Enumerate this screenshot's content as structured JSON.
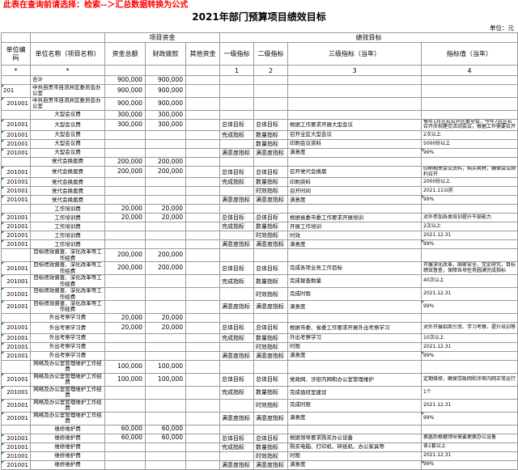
{
  "notice": "此表在查询前请选择：检索--＞汇总数据转换为公式",
  "title": "2021年部门预算项目绩效目标",
  "unit_label": "单位：元",
  "colors": {
    "notice_red": "#ff0000",
    "flag_green": "#1d8348",
    "grid_border": "#9a9a9a"
  },
  "table": {
    "group_headers": {
      "project_funds": "项目资金",
      "performance": "绩效目标"
    },
    "columns": [
      "单位编码",
      "单位名称（项目名称）",
      "资金总额",
      "财政拨款",
      "其他资金",
      "一级指标",
      "二级指标",
      "三级指标（当年）",
      "指标值（当年）"
    ],
    "index_row": [
      "*",
      "*",
      "",
      "",
      "",
      "1",
      "2",
      "3",
      "4"
    ],
    "rows": [
      {
        "code": "",
        "name": "合计",
        "total": "900,000",
        "fiscal": "900,000",
        "other": "",
        "l1": "",
        "l2": "",
        "l3": "",
        "val": "",
        "name_align": "left",
        "tall": false,
        "code_flag": false,
        "val_flag": false,
        "code_align": "right"
      },
      {
        "code": "201",
        "name": "中共自贡市自流井区委员会办公室",
        "total": "900,000",
        "fiscal": "900,000",
        "other": "",
        "l1": "",
        "l2": "",
        "l3": "",
        "val": "",
        "name_align": "left",
        "tall": true,
        "code_flag": true,
        "val_flag": false,
        "code_align": "left"
      },
      {
        "code": "201001",
        "name": "中共自贡市自流井区委员会办公室",
        "total": "900,000",
        "fiscal": "900,000",
        "other": "",
        "l1": "",
        "l2": "",
        "l3": "",
        "val": "",
        "name_align": "left",
        "tall": true,
        "code_flag": true,
        "val_flag": false,
        "code_align": "right"
      },
      {
        "code": "",
        "name": "大型会议费",
        "total": "300,000",
        "fiscal": "300,000",
        "other": "",
        "l1": "",
        "l2": "",
        "l3": "",
        "val": "",
        "name_align": "center",
        "tall": false,
        "code_flag": false,
        "val_flag": false,
        "code_align": "right"
      },
      {
        "code": "201001",
        "name": "大型会议费",
        "total": "300,000",
        "fiscal": "300,000",
        "other": "",
        "l1": "总体目标",
        "l2": "总体目标",
        "l3": "根据工作要求开展大型会议",
        "val": "每年1月左右召开区委全会，今年7月左右召开庆祝建党活动会议，根据工作需要召开",
        "name_align": "center",
        "tall": true,
        "code_flag": true,
        "val_flag": false,
        "code_align": "right"
      },
      {
        "code": "201001",
        "name": "大型会议费",
        "total": "",
        "fiscal": "",
        "other": "",
        "l1": "完成指标",
        "l2": "数量指标",
        "l3": "召开全区大型会议",
        "val": "2次以上",
        "name_align": "center",
        "tall": false,
        "code_flag": true,
        "val_flag": false,
        "code_align": "right"
      },
      {
        "code": "201001",
        "name": "大型会议费",
        "total": "",
        "fiscal": "",
        "other": "",
        "l1": "",
        "l2": "数量指标",
        "l3": "印刷会议资料",
        "val": "5000份以上",
        "name_align": "center",
        "tall": false,
        "code_flag": true,
        "val_flag": false,
        "code_align": "right"
      },
      {
        "code": "201001",
        "name": "大型会议费",
        "total": "",
        "fiscal": "",
        "other": "",
        "l1": "满意度指标",
        "l2": "满意度指标",
        "l3": "满意度",
        "val": "99%",
        "name_align": "center",
        "tall": false,
        "code_flag": true,
        "val_flag": true,
        "code_align": "right"
      },
      {
        "code": "",
        "name": "党代会换届费",
        "total": "200,000",
        "fiscal": "200,000",
        "other": "",
        "l1": "",
        "l2": "",
        "l3": "",
        "val": "",
        "name_align": "center",
        "tall": false,
        "code_flag": false,
        "val_flag": false,
        "code_align": "right"
      },
      {
        "code": "201001",
        "name": "党代会换届费",
        "total": "200,000",
        "fiscal": "200,000",
        "other": "",
        "l1": "总体目标",
        "l2": "总体目标",
        "l3": "召开党代会换届",
        "val": "印刷相关会议资料，购买耗材，确保会议顺利召开",
        "name_align": "center",
        "tall": true,
        "code_flag": true,
        "val_flag": false,
        "code_align": "right"
      },
      {
        "code": "201001",
        "name": "党代会换届费",
        "total": "",
        "fiscal": "",
        "other": "",
        "l1": "完成指标",
        "l2": "数量指标",
        "l3": "印刷资料",
        "val": "2000份以上",
        "name_align": "center",
        "tall": false,
        "code_flag": true,
        "val_flag": false,
        "code_align": "right"
      },
      {
        "code": "201001",
        "name": "党代会换届费",
        "total": "",
        "fiscal": "",
        "other": "",
        "l1": "",
        "l2": "时效指标",
        "l3": "召开时间",
        "val": "2021.11以前",
        "name_align": "center",
        "tall": false,
        "code_flag": true,
        "val_flag": false,
        "code_align": "right"
      },
      {
        "code": "201001",
        "name": "党代会换届费",
        "total": "",
        "fiscal": "",
        "other": "",
        "l1": "满意度指标",
        "l2": "满意度指标",
        "l3": "满意度",
        "val": "99%",
        "name_align": "center",
        "tall": false,
        "code_flag": true,
        "val_flag": true,
        "code_align": "right"
      },
      {
        "code": "",
        "name": "工作培训费",
        "total": "20,000",
        "fiscal": "20,000",
        "other": "",
        "l1": "",
        "l2": "",
        "l3": "",
        "val": "",
        "name_align": "center",
        "tall": false,
        "code_flag": false,
        "val_flag": false,
        "code_align": "right"
      },
      {
        "code": "201001",
        "name": "工作培训费",
        "total": "20,000",
        "fiscal": "20,000",
        "other": "",
        "l1": "总体目标",
        "l2": "总体目标",
        "l3": "根据省委市委工作要求开展培训",
        "val": "对外参加各类培训提升干部能力",
        "name_align": "center",
        "tall": false,
        "code_flag": true,
        "val_flag": false,
        "code_align": "right"
      },
      {
        "code": "201001",
        "name": "工作培训费",
        "total": "",
        "fiscal": "",
        "other": "",
        "l1": "完成指标",
        "l2": "数量指标",
        "l3": "开展工作培训",
        "val": "2次以上",
        "name_align": "center",
        "tall": false,
        "code_flag": true,
        "val_flag": false,
        "code_align": "right"
      },
      {
        "code": "201001",
        "name": "工作培训费",
        "total": "",
        "fiscal": "",
        "other": "",
        "l1": "",
        "l2": "时效指标",
        "l3": "时效",
        "val": "2021.12.31",
        "name_align": "center",
        "tall": false,
        "code_flag": true,
        "val_flag": false,
        "code_align": "right"
      },
      {
        "code": "201001",
        "name": "工作培训费",
        "total": "",
        "fiscal": "",
        "other": "",
        "l1": "满意度指标",
        "l2": "满意度指标",
        "l3": "满意度",
        "val": "99%",
        "name_align": "center",
        "tall": false,
        "code_flag": true,
        "val_flag": true,
        "code_align": "right"
      },
      {
        "code": "",
        "name": "目标绩效督查、深化改革等工作经费",
        "total": "200,000",
        "fiscal": "200,000",
        "other": "",
        "l1": "",
        "l2": "",
        "l3": "",
        "val": "",
        "name_align": "center",
        "tall": true,
        "code_flag": false,
        "val_flag": false,
        "code_align": "right"
      },
      {
        "code": "201001",
        "name": "目标绩效督查、深化改革等工作经费",
        "total": "200,000",
        "fiscal": "200,000",
        "other": "",
        "l1": "总体目标",
        "l2": "总体目标",
        "l3": "完成各项业务工作目标",
        "val": "开展深化改革、国家安全、党史研究、目标绩效督查，保障各项任务圆满完成指标",
        "name_align": "center",
        "tall": true,
        "code_flag": true,
        "val_flag": false,
        "code_align": "right"
      },
      {
        "code": "201001",
        "name": "目标绩效督查、深化改革等工作经费",
        "total": "",
        "fiscal": "",
        "other": "",
        "l1": "完成指标",
        "l2": "数量指标",
        "l3": "完成督查数量",
        "val": "40次以上",
        "name_align": "center",
        "tall": true,
        "code_flag": true,
        "val_flag": false,
        "code_align": "right"
      },
      {
        "code": "201001",
        "name": "目标绩效督查、深化改革等工作经费",
        "total": "",
        "fiscal": "",
        "other": "",
        "l1": "",
        "l2": "时效指标",
        "l3": "完成时限",
        "val": "2021.12.31",
        "name_align": "center",
        "tall": true,
        "code_flag": true,
        "val_flag": false,
        "code_align": "right"
      },
      {
        "code": "201001",
        "name": "目标绩效督查、深化改革等工作经费",
        "total": "",
        "fiscal": "",
        "other": "",
        "l1": "满意度指标",
        "l2": "满意度指标",
        "l3": "满意度",
        "val": "99%",
        "name_align": "center",
        "tall": true,
        "code_flag": true,
        "val_flag": true,
        "code_align": "right"
      },
      {
        "code": "",
        "name": "外出考察学习费",
        "total": "20,000",
        "fiscal": "20,000",
        "other": "",
        "l1": "",
        "l2": "",
        "l3": "",
        "val": "",
        "name_align": "center",
        "tall": false,
        "code_flag": false,
        "val_flag": false,
        "code_align": "right"
      },
      {
        "code": "201001",
        "name": "外出考察学习费",
        "total": "20,000",
        "fiscal": "20,000",
        "other": "",
        "l1": "总体目标",
        "l2": "总体目标",
        "l3": "根据市委、省委工作要求开展外出考察学习",
        "val": "对外开展招商引资、学习考察、提升培训等",
        "name_align": "center",
        "tall": true,
        "code_flag": true,
        "val_flag": false,
        "code_align": "right"
      },
      {
        "code": "201001",
        "name": "外出考察学习费",
        "total": "",
        "fiscal": "",
        "other": "",
        "l1": "完成指标",
        "l2": "数量指标",
        "l3": "外出考察学习",
        "val": "10次以上",
        "name_align": "center",
        "tall": false,
        "code_flag": true,
        "val_flag": false,
        "code_align": "right"
      },
      {
        "code": "201001",
        "name": "外出考察学习费",
        "total": "",
        "fiscal": "",
        "other": "",
        "l1": "",
        "l2": "时效指标",
        "l3": "时限",
        "val": "2021.12.31",
        "name_align": "center",
        "tall": false,
        "code_flag": true,
        "val_flag": false,
        "code_align": "right"
      },
      {
        "code": "201001",
        "name": "外出考察学习费",
        "total": "",
        "fiscal": "",
        "other": "",
        "l1": "满意度指标",
        "l2": "满意度指标",
        "l3": "满意度",
        "val": "99%",
        "name_align": "center",
        "tall": false,
        "code_flag": true,
        "val_flag": true,
        "code_align": "right"
      },
      {
        "code": "",
        "name": "网络及办公室管理维护工作经费",
        "total": "100,000",
        "fiscal": "100,000",
        "other": "",
        "l1": "",
        "l2": "",
        "l3": "",
        "val": "",
        "name_align": "center",
        "tall": true,
        "code_flag": false,
        "val_flag": false,
        "code_align": "right"
      },
      {
        "code": "201001",
        "name": "网络及办公室管理维护工作经费",
        "total": "100,000",
        "fiscal": "100,000",
        "other": "",
        "l1": "总体目标",
        "l2": "总体目标",
        "l3": "党政网、涉密内网和办公室管理维护",
        "val": "定期维修，确保党政网和涉密内网正常运行",
        "name_align": "center",
        "tall": true,
        "code_flag": true,
        "val_flag": false,
        "code_align": "right"
      },
      {
        "code": "201001",
        "name": "网络及办公室管理维护工作经费",
        "total": "",
        "fiscal": "",
        "other": "",
        "l1": "完成指标",
        "l2": "数量指标",
        "l3": "完成值班室建设",
        "val": "1个",
        "name_align": "center",
        "tall": true,
        "code_flag": true,
        "val_flag": false,
        "code_align": "right"
      },
      {
        "code": "201001",
        "name": "网络及办公室管理维护工作经费",
        "total": "",
        "fiscal": "",
        "other": "",
        "l1": "",
        "l2": "时效指标",
        "l3": "完成时限",
        "val": "2021.12.31",
        "name_align": "center",
        "tall": true,
        "code_flag": true,
        "val_flag": false,
        "code_align": "right"
      },
      {
        "code": "201001",
        "name": "网络及办公室管理维护工作经费",
        "total": "",
        "fiscal": "",
        "other": "",
        "l1": "满意度指标",
        "l2": "满意度指标",
        "l3": "满意度",
        "val": "99%",
        "name_align": "center",
        "tall": true,
        "code_flag": true,
        "val_flag": true,
        "code_align": "right"
      },
      {
        "code": "",
        "name": "维修维护费",
        "total": "60,000",
        "fiscal": "60,000",
        "other": "",
        "l1": "",
        "l2": "",
        "l3": "",
        "val": "",
        "name_align": "center",
        "tall": false,
        "code_flag": false,
        "val_flag": false,
        "code_align": "right"
      },
      {
        "code": "201001",
        "name": "维修维护费",
        "total": "60,000",
        "fiscal": "60,000",
        "other": "",
        "l1": "总体目标",
        "l2": "总体目标",
        "l3": "根据领导要求购买办公设备",
        "val": "换届后根据领导需要更换办公设备",
        "name_align": "center",
        "tall": false,
        "code_flag": true,
        "val_flag": false,
        "code_align": "right"
      },
      {
        "code": "201001",
        "name": "维修维护费",
        "total": "",
        "fiscal": "",
        "other": "",
        "l1": "完成指标",
        "l2": "数量指标",
        "l3": "购买电脑、打印机、碎纸机、办公家具等",
        "val": "各1套以上",
        "name_align": "center",
        "tall": false,
        "code_flag": true,
        "val_flag": false,
        "code_align": "right"
      },
      {
        "code": "201001",
        "name": "维修维护费",
        "total": "",
        "fiscal": "",
        "other": "",
        "l1": "",
        "l2": "时效指标",
        "l3": "时限",
        "val": "2021.12.31",
        "name_align": "center",
        "tall": false,
        "code_flag": true,
        "val_flag": false,
        "code_align": "right"
      },
      {
        "code": "201001",
        "name": "维修维护费",
        "total": "",
        "fiscal": "",
        "other": "",
        "l1": "满意度指标",
        "l2": "满意度指标",
        "l3": "满意度",
        "val": "99%",
        "name_align": "center",
        "tall": false,
        "code_flag": true,
        "val_flag": true,
        "code_align": "right"
      }
    ]
  }
}
